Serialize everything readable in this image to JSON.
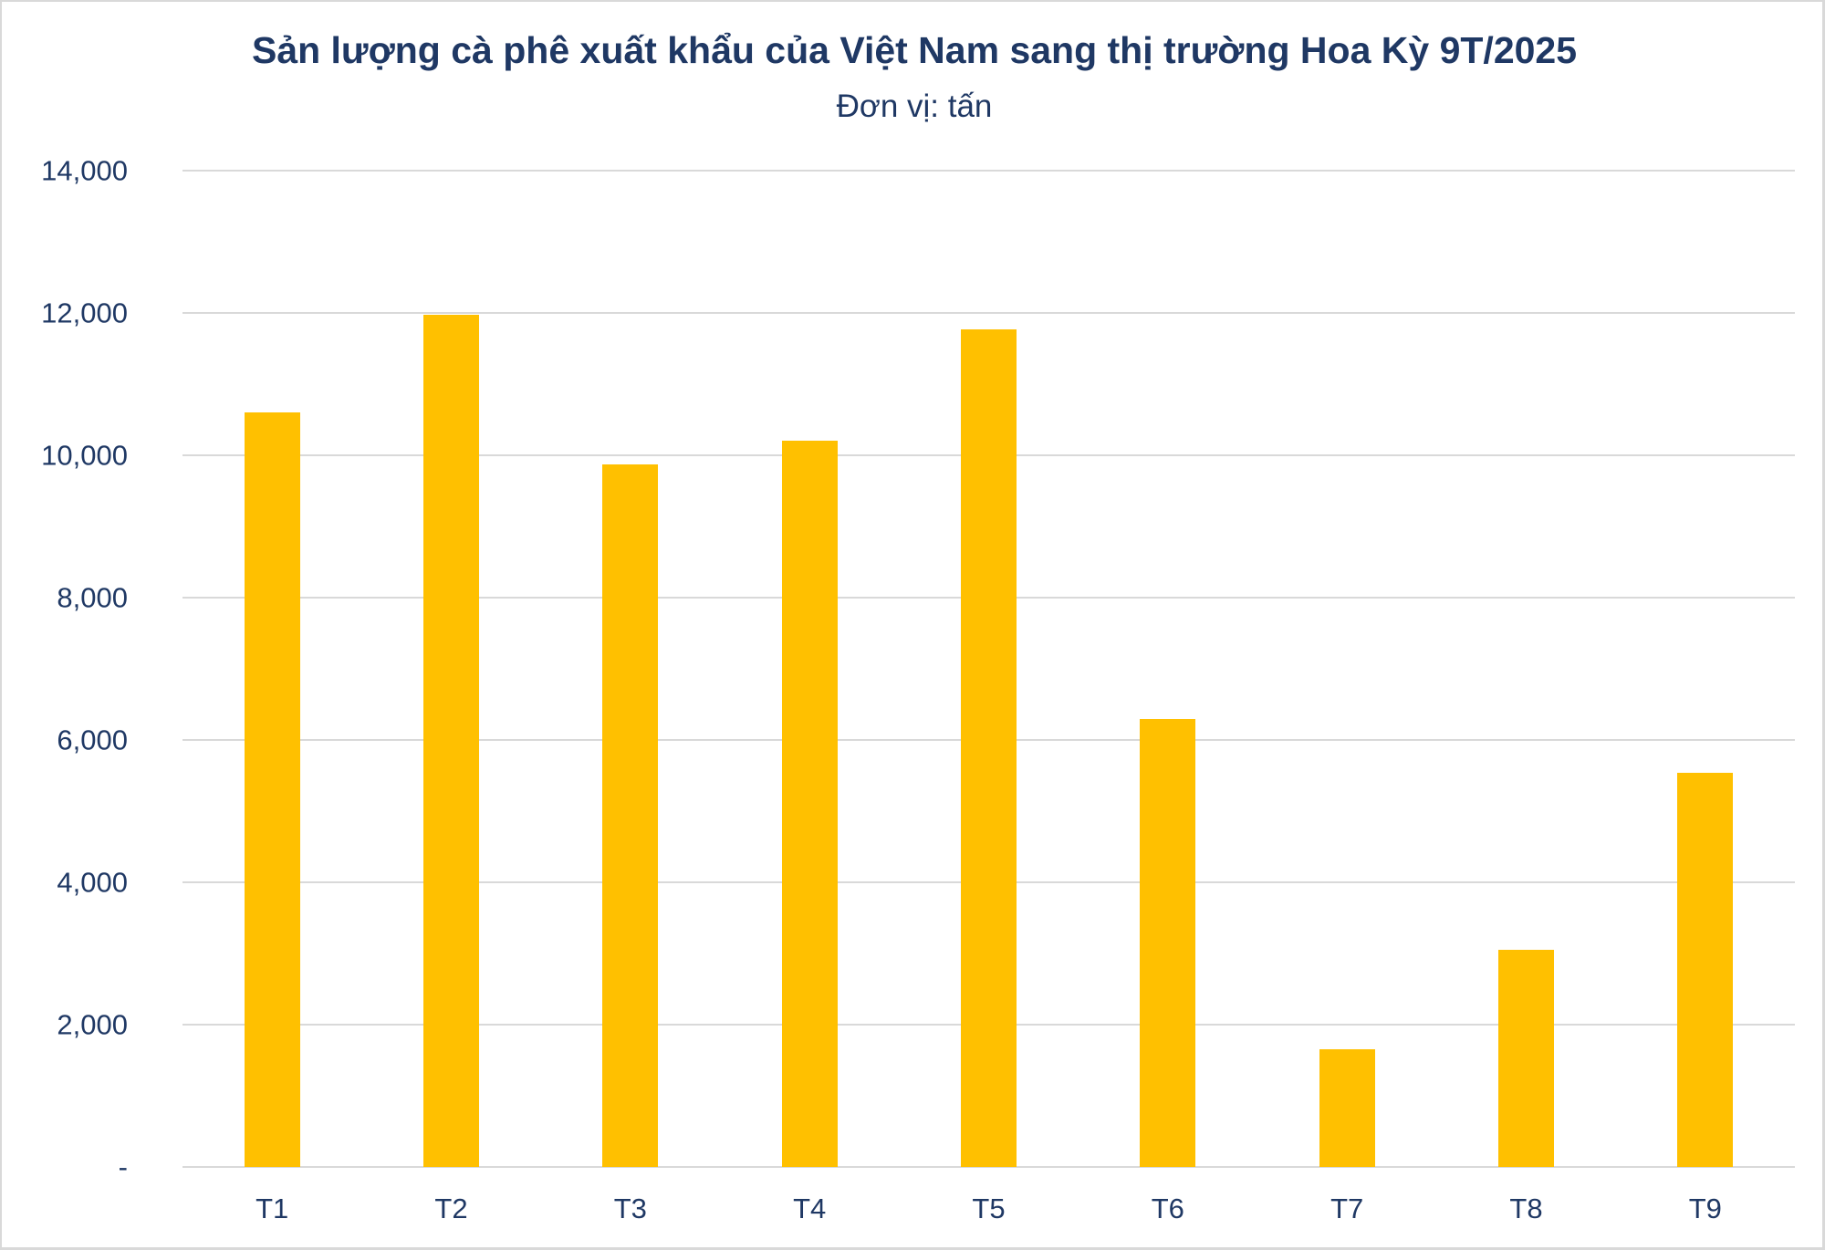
{
  "chart": {
    "title": "Sản lượng cà phê xuất khẩu của Việt Nam sang thị trường Hoa Kỳ 9T/2025",
    "subtitle": "Đơn vị: tấn",
    "colors": {
      "bar": "#FFC000",
      "text": "#1F3864",
      "gridline": "#D9D9D9",
      "border": "#D9D9D9"
    }
  },
  "chart_data": {
    "type": "bar",
    "title": "Sản lượng cà phê xuất khẩu của Việt Nam sang thị trường Hoa Kỳ 9T/2025",
    "subtitle": "Đơn vị: tấn",
    "xlabel": "",
    "ylabel": "",
    "categories": [
      "T1",
      "T2",
      "T3",
      "T4",
      "T5",
      "T6",
      "T7",
      "T8",
      "T9"
    ],
    "values": [
      10600,
      11980,
      9870,
      10200,
      11770,
      6300,
      1650,
      3050,
      5540
    ],
    "ylim": [
      0,
      14000
    ],
    "yticks": [
      0,
      2000,
      4000,
      6000,
      8000,
      10000,
      12000,
      14000
    ],
    "ytick_labels": [
      "-",
      "2,000",
      "4,000",
      "6,000",
      "8,000",
      "10,000",
      "12,000",
      "14,000"
    ],
    "grid": true,
    "legend": null,
    "series": [
      {
        "name": "Sản lượng (tấn)",
        "color": "#FFC000",
        "values": [
          10600,
          11980,
          9870,
          10200,
          11770,
          6300,
          1650,
          3050,
          5540
        ]
      }
    ]
  }
}
